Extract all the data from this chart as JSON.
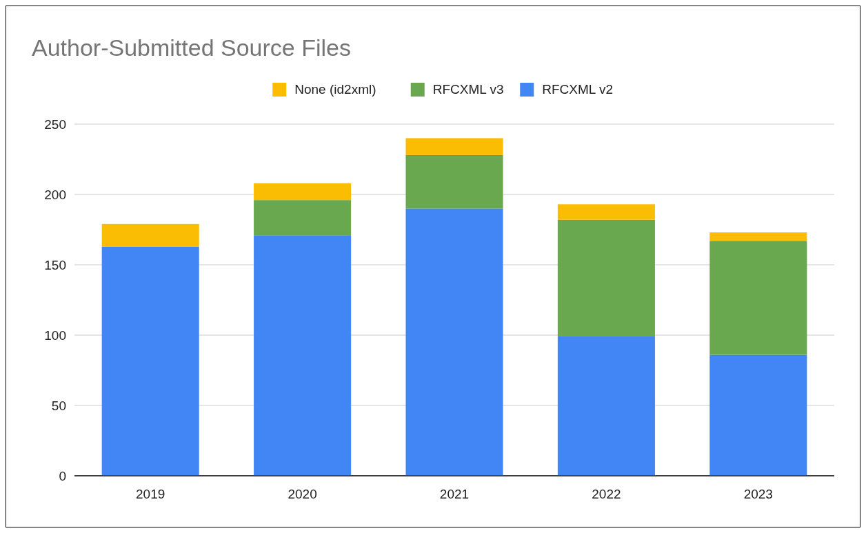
{
  "chart_data": {
    "type": "bar",
    "title": "Author-Submitted Source Files",
    "categories": [
      "2019",
      "2020",
      "2021",
      "2022",
      "2023"
    ],
    "stacked": true,
    "series": [
      {
        "name": "RFCXML v2",
        "color": "#4285f4",
        "values": [
          163,
          171,
          190,
          99,
          86
        ]
      },
      {
        "name": "RFCXML v3",
        "color": "#6aa84f",
        "values": [
          0,
          25,
          38,
          83,
          81
        ]
      },
      {
        "name": "None (id2xml)",
        "color": "#fbbc04",
        "values": [
          16,
          12,
          12,
          11,
          6
        ]
      }
    ],
    "ylim": [
      0,
      250
    ],
    "yticks": [
      0,
      50,
      100,
      150,
      200,
      250
    ],
    "grid": "y",
    "legend": "top"
  }
}
